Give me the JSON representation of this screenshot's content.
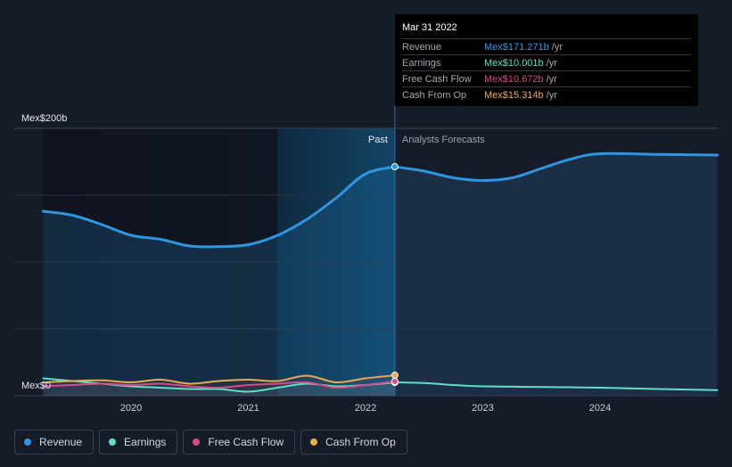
{
  "chart_data": {
    "type": "area",
    "currency": "Mex$",
    "y_axis_labels": {
      "top": "Mex$200b",
      "bottom": "Mex$0"
    },
    "ylim": [
      0,
      200
    ],
    "x_ticks": [
      {
        "label": "2020",
        "year": 2020.0
      },
      {
        "label": "2021",
        "year": 2021.0
      },
      {
        "label": "2022",
        "year": 2022.0
      },
      {
        "label": "2023",
        "year": 2023.0
      },
      {
        "label": "2024",
        "year": 2024.0
      }
    ],
    "xlim": [
      2019.25,
      2025.0
    ],
    "past_label": "Past",
    "forecast_label": "Analysts Forecasts",
    "past_end_year": 2022.25,
    "highlight_start_year": 2021.25,
    "series": [
      {
        "name": "Revenue",
        "color": "#2e95e0",
        "points": [
          [
            2019.25,
            138
          ],
          [
            2019.5,
            135
          ],
          [
            2019.75,
            128
          ],
          [
            2020.0,
            120
          ],
          [
            2020.25,
            117
          ],
          [
            2020.5,
            112
          ],
          [
            2020.75,
            111.5
          ],
          [
            2021.0,
            113
          ],
          [
            2021.25,
            120
          ],
          [
            2021.5,
            132
          ],
          [
            2021.75,
            148
          ],
          [
            2022.0,
            166
          ],
          [
            2022.25,
            171.3
          ]
        ],
        "forecast": [
          [
            2022.25,
            171.3
          ],
          [
            2022.5,
            168
          ],
          [
            2022.75,
            163
          ],
          [
            2023.0,
            161
          ],
          [
            2023.25,
            163
          ],
          [
            2023.5,
            170
          ],
          [
            2023.75,
            177
          ],
          [
            2024.0,
            181
          ],
          [
            2024.5,
            180.5
          ],
          [
            2025.0,
            180
          ]
        ]
      },
      {
        "name": "Earnings",
        "color": "#5ee0c6",
        "points": [
          [
            2019.25,
            13
          ],
          [
            2019.5,
            11
          ],
          [
            2019.75,
            9
          ],
          [
            2020.0,
            7
          ],
          [
            2020.25,
            6
          ],
          [
            2020.5,
            5
          ],
          [
            2020.75,
            5
          ],
          [
            2021.0,
            3
          ],
          [
            2021.25,
            6
          ],
          [
            2021.5,
            9
          ],
          [
            2021.75,
            7
          ],
          [
            2022.0,
            8
          ],
          [
            2022.25,
            10
          ]
        ],
        "forecast": [
          [
            2022.25,
            10
          ],
          [
            2022.5,
            9.5
          ],
          [
            2022.75,
            8
          ],
          [
            2023.0,
            7
          ],
          [
            2023.5,
            6.5
          ],
          [
            2024.0,
            6
          ],
          [
            2024.5,
            5
          ],
          [
            2025.0,
            4.2
          ]
        ]
      },
      {
        "name": "Free Cash Flow",
        "color": "#d94a8a",
        "points": [
          [
            2019.25,
            7
          ],
          [
            2019.5,
            8
          ],
          [
            2019.75,
            9
          ],
          [
            2020.0,
            8
          ],
          [
            2020.25,
            9
          ],
          [
            2020.5,
            7
          ],
          [
            2020.75,
            6
          ],
          [
            2021.0,
            8
          ],
          [
            2021.25,
            9
          ],
          [
            2021.5,
            10
          ],
          [
            2021.75,
            6
          ],
          [
            2022.0,
            8
          ],
          [
            2022.25,
            10.7
          ]
        ],
        "forecast": []
      },
      {
        "name": "Cash From Op",
        "color": "#e9a955",
        "points": [
          [
            2019.25,
            10
          ],
          [
            2019.5,
            11
          ],
          [
            2019.75,
            11.5
          ],
          [
            2020.0,
            10
          ],
          [
            2020.25,
            12
          ],
          [
            2020.5,
            9
          ],
          [
            2020.75,
            11
          ],
          [
            2021.0,
            12
          ],
          [
            2021.25,
            11
          ],
          [
            2021.5,
            15
          ],
          [
            2021.75,
            10
          ],
          [
            2022.0,
            13
          ],
          [
            2022.25,
            15.3
          ]
        ],
        "forecast": []
      }
    ]
  },
  "tooltip": {
    "date": "Mar 31 2022",
    "rows": [
      {
        "label": "Revenue",
        "value": "Mex$171.271b",
        "unit": "/yr",
        "color": "#2e95e0"
      },
      {
        "label": "Earnings",
        "value": "Mex$10.001b",
        "unit": "/yr",
        "color": "#5ee0c6"
      },
      {
        "label": "Free Cash Flow",
        "value": "Mex$10.672b",
        "unit": "/yr",
        "color": "#d94a8a"
      },
      {
        "label": "Cash From Op",
        "value": "Mex$15.314b",
        "unit": "/yr",
        "color": "#e9a955"
      }
    ]
  },
  "legend": [
    {
      "label": "Revenue",
      "color": "#2e95e0"
    },
    {
      "label": "Earnings",
      "color": "#5ee0c6"
    },
    {
      "label": "Free Cash Flow",
      "color": "#d94a8a"
    },
    {
      "label": "Cash From Op",
      "color": "#e9a955"
    }
  ]
}
